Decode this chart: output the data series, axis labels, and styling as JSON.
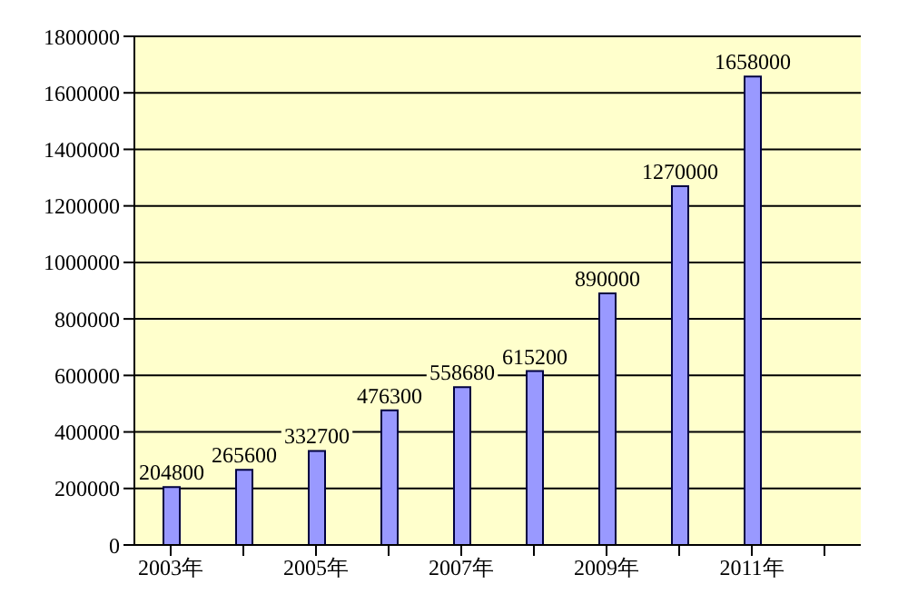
{
  "chart_data": {
    "type": "bar",
    "categories": [
      "2003年",
      null,
      "2005年",
      null,
      "2007年",
      null,
      "2009年",
      null,
      "2011年",
      null
    ],
    "values": [
      204800,
      265600,
      332700,
      476300,
      558680,
      615200,
      890000,
      1270000,
      1658000,
      null
    ],
    "color": "#9999ff",
    "ylim": [
      0,
      1800000
    ],
    "yticks": [
      0,
      200000,
      400000,
      600000,
      800000,
      1000000,
      1200000,
      1400000,
      1600000,
      1800000
    ],
    "grid": "y",
    "data_labels": true
  }
}
